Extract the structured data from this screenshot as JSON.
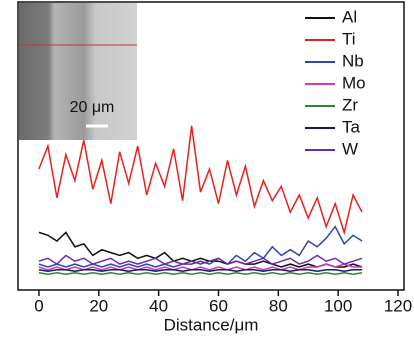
{
  "chart_data": {
    "type": "line",
    "xlabel": "Distance/μm",
    "annotation": "20 μm",
    "x": [
      0,
      3,
      6,
      9,
      12,
      15,
      18,
      21,
      24,
      27,
      30,
      33,
      36,
      39,
      42,
      45,
      48,
      51,
      54,
      57,
      60,
      63,
      66,
      69,
      72,
      75,
      78,
      81,
      84,
      87,
      90,
      93,
      96,
      99,
      102,
      105,
      108
    ],
    "xlim": [
      -7,
      122
    ],
    "xticks": [
      0,
      20,
      40,
      60,
      80,
      100,
      120
    ],
    "ylim": [
      0,
      100
    ],
    "legend": "upper right",
    "series": [
      {
        "name": "Al",
        "color": "#111111",
        "values": [
          20,
          19,
          17,
          20,
          15,
          16,
          12,
          14,
          13,
          12,
          13,
          11,
          12,
          11,
          13,
          10,
          11,
          10,
          11,
          10,
          10,
          9,
          10,
          9,
          9,
          10,
          9,
          8,
          9,
          8,
          9,
          8,
          9,
          8,
          8,
          9,
          8
        ]
      },
      {
        "name": "Ti",
        "color": "#e8211c",
        "values": [
          42,
          50,
          32,
          47,
          38,
          52,
          35,
          45,
          30,
          48,
          37,
          50,
          33,
          44,
          36,
          49,
          31,
          57,
          34,
          42,
          30,
          45,
          33,
          43,
          29,
          38,
          31,
          36,
          27,
          33,
          25,
          32,
          22,
          30,
          20,
          33,
          27
        ]
      },
      {
        "name": "Nb",
        "color": "#3346b0",
        "values": [
          9,
          8,
          9,
          8,
          9,
          8,
          9,
          8,
          9,
          8,
          9,
          8,
          9,
          8,
          9,
          8,
          9,
          9,
          10,
          9,
          11,
          9,
          12,
          10,
          13,
          11,
          15,
          12,
          14,
          12,
          17,
          15,
          18,
          22,
          16,
          19,
          17
        ]
      },
      {
        "name": "Mo",
        "color": "#c33ec3",
        "values": [
          8,
          7,
          8,
          7,
          8,
          7,
          8,
          7,
          8,
          7,
          8,
          7,
          8,
          7,
          8,
          7,
          8,
          7,
          8,
          7,
          8,
          7,
          8,
          7,
          8,
          7,
          8,
          7,
          8,
          7,
          8,
          8,
          9,
          8,
          9,
          8,
          8
        ]
      },
      {
        "name": "Zr",
        "color": "#2a8a2a",
        "values": [
          6,
          5.5,
          6,
          5.5,
          6,
          5.5,
          6,
          5.5,
          6,
          5.5,
          6,
          5.5,
          6,
          5.5,
          6,
          5.5,
          6,
          5.5,
          6,
          5.5,
          6,
          5.5,
          6,
          5.5,
          6,
          5.5,
          6,
          5.5,
          6,
          5.5,
          6,
          5.5,
          6,
          5.5,
          6,
          5.5,
          6
        ]
      },
      {
        "name": "Ta",
        "color": "#1a1a60",
        "values": [
          7,
          6.5,
          7,
          7,
          6.5,
          7,
          7,
          6.5,
          7,
          7,
          6.5,
          7,
          7,
          6.5,
          7,
          7,
          6.5,
          7,
          7,
          6.5,
          7,
          7,
          6.5,
          7,
          7,
          6.5,
          7,
          7,
          6.5,
          7,
          7,
          6.5,
          7,
          7,
          6.5,
          7,
          7
        ]
      },
      {
        "name": "W",
        "color": "#6a2ab0",
        "values": [
          10,
          11,
          9,
          12,
          10,
          11,
          9,
          10,
          11,
          9,
          10,
          9,
          10,
          11,
          9,
          10,
          9,
          10,
          9,
          10,
          11,
          9,
          10,
          9,
          10,
          11,
          9,
          10,
          11,
          9,
          10,
          12,
          10,
          11,
          9,
          10,
          11
        ]
      }
    ]
  }
}
